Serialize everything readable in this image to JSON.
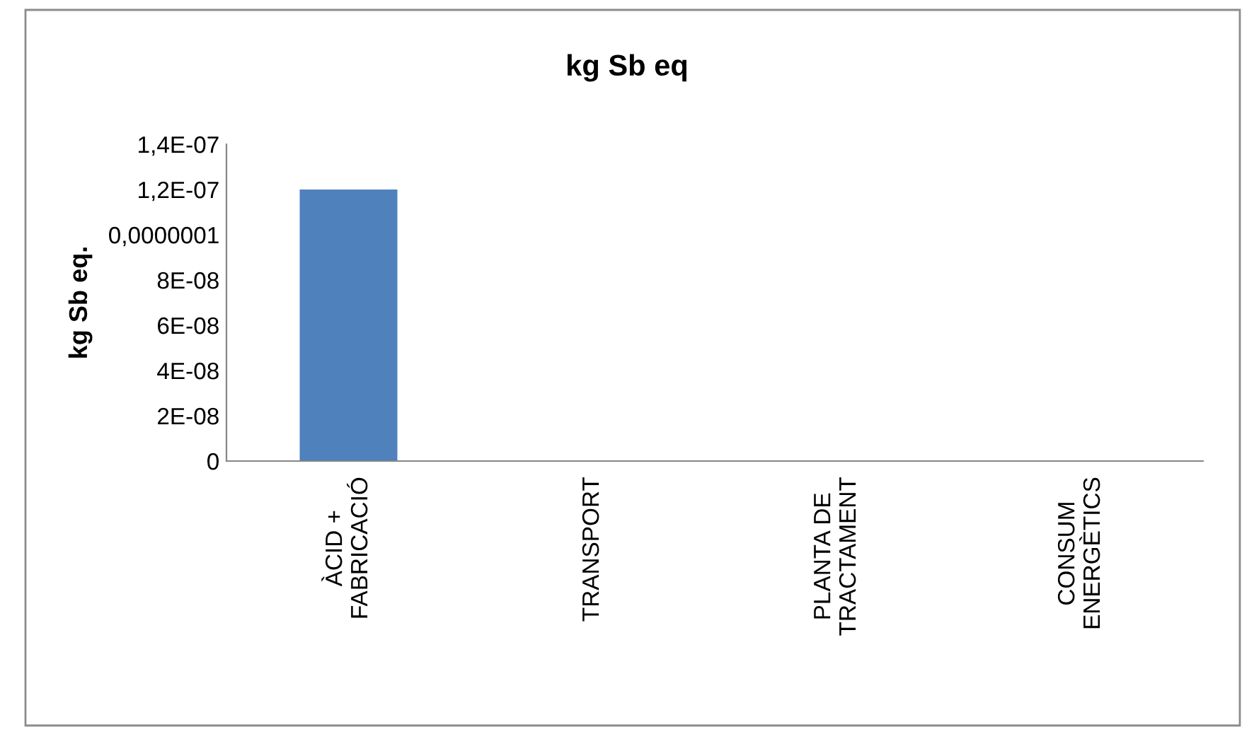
{
  "chart_data": {
    "type": "bar",
    "title": "kg Sb eq",
    "ylabel": "kg Sb eq.",
    "categories": [
      "ÀCID +\nFABRICACIÓ",
      "TRANSPORT",
      "PLANTA DE\nTRACTAMENT",
      "CONSUM\nENERGÈTICS"
    ],
    "values": [
      1.2e-07,
      0,
      0,
      0
    ],
    "color": "#4f81bd",
    "ylim": [
      0,
      1.4e-07
    ],
    "yticks": [
      0,
      {
        "value": 2e-08,
        "label": "2E-08"
      },
      {
        "value": 4e-08,
        "label": "4E-08"
      },
      {
        "value": 6e-08,
        "label": "6E-08"
      },
      {
        "value": 8e-08,
        "label": "8E-08"
      },
      {
        "value": 1e-07,
        "label": "0,0000001"
      },
      {
        "value": 1.2e-07,
        "label": "1,2E-07"
      },
      {
        "value": 1.4e-07,
        "label": "1,4E-07"
      }
    ],
    "grid": false,
    "legend": false
  }
}
